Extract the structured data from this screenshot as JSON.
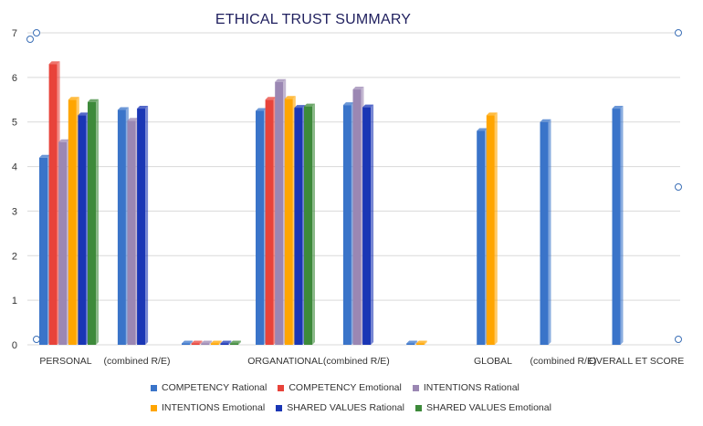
{
  "chart_data": {
    "type": "bar",
    "title": "ETHICAL TRUST SUMMARY",
    "xlabel": "",
    "ylabel": "",
    "ylim": [
      0,
      7
    ],
    "yticks": [
      "0",
      "1",
      "2",
      "3",
      "4",
      "5",
      "6",
      "7"
    ],
    "grid": true,
    "legend_position": "bottom",
    "categories": [
      "PERSONAL",
      "(combined R/E)",
      "",
      "ORGANATIONAL",
      "(combined R/E)",
      "",
      "GLOBAL",
      "(combined R/E)",
      "OVERALL ET SCORE"
    ],
    "category_labels": [
      "PERSONAL",
      "(combined R/E)",
      "ORGANATIONAL(combined R/E)",
      "GLOBAL",
      "(combined R/E)",
      "OVERALL ET SCORE"
    ],
    "series": [
      {
        "name": "COMPETENCY Rational",
        "color": "#3a74c9",
        "values": [
          4.2,
          5.27,
          0,
          5.25,
          5.38,
          0,
          4.8,
          5.0,
          5.3
        ]
      },
      {
        "name": "COMPETENCY Emotional",
        "color": "#e8433a",
        "values": [
          6.3,
          null,
          0,
          5.5,
          null,
          null,
          null,
          null,
          null
        ]
      },
      {
        "name": "INTENTIONS Rational",
        "color": "#9b87b3",
        "values": [
          4.55,
          5.03,
          0,
          5.9,
          5.73,
          null,
          null,
          null,
          null
        ]
      },
      {
        "name": "INTENTIONS Emotional",
        "color": "#ffa500",
        "values": [
          5.5,
          null,
          0,
          5.52,
          null,
          0,
          5.15,
          null,
          null
        ]
      },
      {
        "name": "SHARED VALUES Rational",
        "color": "#1a36b5",
        "values": [
          5.15,
          5.3,
          0,
          5.32,
          5.33,
          null,
          null,
          null,
          null
        ]
      },
      {
        "name": "SHARED VALUES Emotional",
        "color": "#3d8a3a",
        "values": [
          5.45,
          null,
          0,
          5.35,
          null,
          null,
          null,
          null,
          null
        ]
      }
    ]
  }
}
